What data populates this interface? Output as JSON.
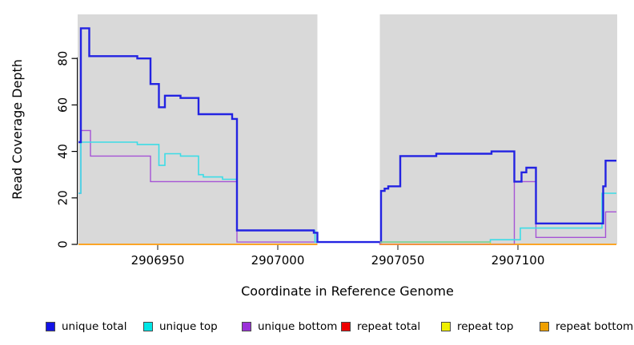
{
  "figure": {
    "plot_background_color": "#d9d9d9",
    "masked_region_color": "#ffffff",
    "axis_color": "#000000",
    "tick_color": "#666666"
  },
  "chart_data": {
    "type": "line",
    "subtype": "step-after read coverage profile",
    "title": "",
    "xlabel": "Coordinate in Reference Genome",
    "ylabel": "Read Coverage Depth",
    "xlim": [
      2906917,
      2907141
    ],
    "ylim": [
      0,
      96
    ],
    "grid": false,
    "legend_position": "bottom",
    "x_ticks": [
      {
        "value": 2906950,
        "label": "2906950"
      },
      {
        "value": 2907000,
        "label": "2907000"
      },
      {
        "value": 2907050,
        "label": "2907050"
      },
      {
        "value": 2907100,
        "label": "2907100"
      }
    ],
    "y_ticks": [
      {
        "value": 0,
        "label": "0"
      },
      {
        "value": 20,
        "label": "20"
      },
      {
        "value": 40,
        "label": "40"
      },
      {
        "value": 60,
        "label": "60"
      },
      {
        "value": 80,
        "label": "80"
      }
    ],
    "masked_region": {
      "x_start": 2907016.5,
      "x_end": 2907042.5,
      "note": "white vertical band with no data except unique-total/bottom line near 1"
    },
    "series": [
      {
        "name": "repeat total",
        "color": "#e60000",
        "line_width": 1.4,
        "segments": [
          [
            [
              2906917,
              0
            ],
            [
              2907016.5,
              0
            ]
          ],
          [
            [
              2907042.5,
              0
            ],
            [
              2907141,
              0
            ]
          ]
        ]
      },
      {
        "name": "repeat top",
        "color": "#f0f000",
        "line_width": 1.4,
        "segments": [
          [
            [
              2906917,
              0
            ],
            [
              2907016.5,
              0
            ]
          ],
          [
            [
              2907042.5,
              1
            ],
            [
              2907088.5,
              0
            ],
            [
              2907141,
              0
            ]
          ]
        ]
      },
      {
        "name": "unique bottom",
        "color": "#a653d6",
        "line_width": 1.4,
        "segments": [
          [
            [
              2906917,
              22
            ],
            [
              2906918,
              49
            ],
            [
              2906922,
              38
            ],
            [
              2906947,
              27
            ],
            [
              2906983,
              1
            ],
            [
              2907042.5,
              0
            ],
            [
              2907098.5,
              27
            ],
            [
              2907107.5,
              3
            ],
            [
              2907136.5,
              14
            ],
            [
              2907141,
              14
            ]
          ]
        ]
      },
      {
        "name": "unique top",
        "color": "#3cdce6",
        "line_width": 1.6,
        "segments": [
          [
            [
              2906917,
              22
            ],
            [
              2906918,
              44
            ],
            [
              2906941.5,
              43
            ],
            [
              2906950.5,
              34
            ],
            [
              2906953,
              39
            ],
            [
              2906959.5,
              38
            ],
            [
              2906967,
              30
            ],
            [
              2906969,
              29
            ],
            [
              2906977,
              28
            ],
            [
              2906983,
              6
            ],
            [
              2907015.5,
              1
            ],
            [
              2907016.5,
              1
            ]
          ],
          [
            [
              2907042.5,
              1
            ],
            [
              2907088.5,
              2
            ],
            [
              2907101,
              7
            ],
            [
              2907135,
              22
            ],
            [
              2907141,
              22
            ]
          ]
        ]
      },
      {
        "name": "unique total",
        "color": "#2323e2",
        "line_width": 2.4,
        "segments": [
          [
            [
              2906917,
              44
            ],
            [
              2906918,
              93
            ],
            [
              2906921.5,
              81
            ],
            [
              2906941.5,
              80
            ],
            [
              2906947,
              69
            ],
            [
              2906950.5,
              59
            ],
            [
              2906953,
              64
            ],
            [
              2906959.5,
              63
            ],
            [
              2906967,
              56
            ],
            [
              2906981,
              54
            ],
            [
              2906983,
              6
            ],
            [
              2907015,
              5
            ],
            [
              2907016.5,
              1
            ],
            [
              2907042.5,
              1
            ],
            [
              2907043,
              23
            ],
            [
              2907044.5,
              24
            ],
            [
              2907046,
              25
            ],
            [
              2907051,
              38
            ],
            [
              2907066,
              39
            ],
            [
              2907089,
              40
            ],
            [
              2907098.5,
              27
            ],
            [
              2907101.5,
              31
            ],
            [
              2907103.5,
              33
            ],
            [
              2907107.5,
              9
            ],
            [
              2907135.5,
              25
            ],
            [
              2907136.5,
              36
            ],
            [
              2907141,
              36
            ]
          ]
        ]
      },
      {
        "name": "repeat bottom",
        "color": "#ffa020",
        "line_width": 1.6,
        "segments": [
          [
            [
              2906917,
              0
            ],
            [
              2907016.5,
              0
            ]
          ],
          [
            [
              2907042.5,
              0
            ],
            [
              2907141,
              0
            ]
          ]
        ]
      }
    ],
    "overlap_segment": {
      "note": "unique top + repeat top overlap rendered green",
      "color": "#8ccf8c",
      "line_width": 1.5,
      "points": [
        [
          2907042.5,
          1
        ],
        [
          2907088.5,
          1
        ]
      ]
    }
  },
  "legend": {
    "items": [
      {
        "label": "unique total",
        "color": "#1414e6"
      },
      {
        "label": "unique top",
        "color": "#00e6e6"
      },
      {
        "label": "unique bottom",
        "color": "#9b30d9"
      },
      {
        "label": "repeat total",
        "color": "#ee0000"
      },
      {
        "label": "repeat top",
        "color": "#efef00"
      },
      {
        "label": "repeat bottom",
        "color": "#f0a000"
      }
    ]
  }
}
